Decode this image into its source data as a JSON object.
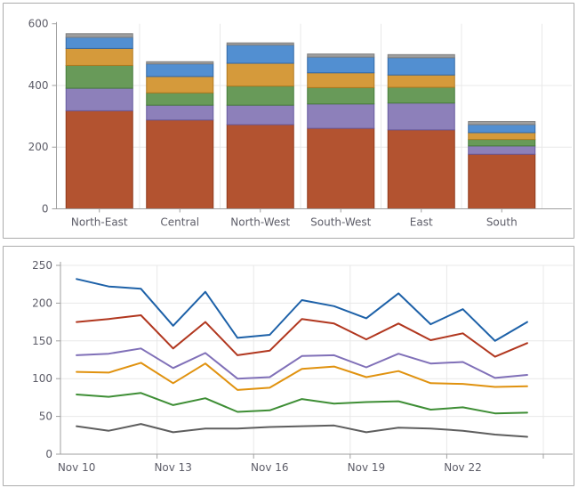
{
  "page": {
    "background": "#ffffff",
    "panel_border": "#ababab",
    "grid_color": "#e8e8e8",
    "axis_color": "#9f9f9f",
    "label_color": "#5d5d68"
  },
  "chart_data": [
    {
      "name": "regions-stacked-bar",
      "type": "bar",
      "stacked": true,
      "categories": [
        "North-East",
        "Central",
        "North-West",
        "South-West",
        "East",
        "South"
      ],
      "series": [
        {
          "name": "rust",
          "fill": "#b35330",
          "stroke": "#8f3a1c",
          "values": [
            318,
            288,
            273,
            261,
            256,
            177
          ]
        },
        {
          "name": "purple",
          "fill": "#8d80ba",
          "stroke": "#675a9e",
          "values": [
            73,
            48,
            63,
            79,
            87,
            27
          ]
        },
        {
          "name": "green",
          "fill": "#689a59",
          "stroke": "#477c3b",
          "values": [
            74,
            40,
            62,
            53,
            51,
            21
          ]
        },
        {
          "name": "orange",
          "fill": "#d59a3b",
          "stroke": "#b0791f",
          "values": [
            55,
            53,
            74,
            48,
            40,
            22
          ]
        },
        {
          "name": "blue",
          "fill": "#528fd1",
          "stroke": "#3268a5",
          "values": [
            36,
            41,
            59,
            51,
            56,
            26
          ]
        },
        {
          "name": "gray",
          "fill": "#9e9e9e",
          "stroke": "#7f7f7f",
          "values": [
            12,
            7,
            7,
            10,
            10,
            10
          ]
        }
      ],
      "title": "",
      "xlabel": "",
      "ylabel": "",
      "ylim": [
        0,
        600
      ],
      "yticks": [
        0,
        200,
        400,
        600
      ],
      "grid_yvalues": [
        200,
        400
      ],
      "grid": true,
      "legend": "none"
    },
    {
      "name": "daily-lines",
      "type": "line",
      "n_points": 15,
      "x_tick_labels": [
        "Nov 10",
        "Nov 13",
        "Nov 16",
        "Nov 19",
        "Nov 22"
      ],
      "label_every": 3,
      "series": [
        {
          "name": "blue",
          "color": "#1d61a8",
          "values": [
            232,
            222,
            219,
            170,
            215,
            154,
            158,
            204,
            196,
            180,
            213,
            172,
            192,
            150,
            175
          ]
        },
        {
          "name": "red",
          "color": "#b1371f",
          "values": [
            175,
            179,
            184,
            140,
            175,
            131,
            137,
            179,
            173,
            152,
            173,
            151,
            160,
            129,
            147
          ]
        },
        {
          "name": "purple",
          "color": "#8070b8",
          "values": [
            131,
            133,
            140,
            114,
            134,
            100,
            102,
            130,
            131,
            115,
            133,
            120,
            122,
            101,
            105
          ]
        },
        {
          "name": "orange",
          "color": "#e0920f",
          "values": [
            109,
            108,
            121,
            94,
            120,
            85,
            88,
            113,
            116,
            102,
            110,
            94,
            93,
            89,
            90
          ]
        },
        {
          "name": "green",
          "color": "#3e8e35",
          "values": [
            79,
            76,
            81,
            65,
            74,
            56,
            58,
            73,
            67,
            69,
            70,
            59,
            62,
            54,
            55
          ]
        },
        {
          "name": "gray",
          "color": "#5e5e5e",
          "values": [
            37,
            31,
            40,
            29,
            34,
            34,
            36,
            37,
            38,
            29,
            35,
            34,
            31,
            26,
            23
          ]
        }
      ],
      "title": "",
      "xlabel": "",
      "ylabel": "",
      "ylim": [
        0,
        250
      ],
      "yticks": [
        0,
        50,
        100,
        150,
        200,
        250
      ],
      "grid_yvalues": [
        50,
        100,
        150,
        200,
        250
      ],
      "grid": true,
      "legend": "none"
    }
  ]
}
